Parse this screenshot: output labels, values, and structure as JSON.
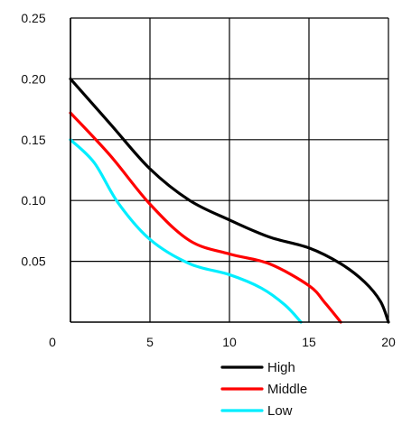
{
  "chart_data": {
    "type": "line",
    "title": "",
    "xlabel": "",
    "ylabel": "",
    "xlim": [
      0,
      20
    ],
    "ylim": [
      0,
      0.25
    ],
    "x_ticks": [
      "0",
      "5",
      "10",
      "15",
      "20"
    ],
    "y_ticks": [
      "0.25",
      "0.20",
      "0.15",
      "0.10",
      "0.05"
    ],
    "grid": true,
    "legend_position": "bottom-right",
    "series": [
      {
        "name": "High",
        "color": "#000000",
        "x": [
          0,
          2.5,
          5,
          7.5,
          10,
          12.5,
          15,
          17,
          18.5,
          19.5,
          20
        ],
        "y": [
          0.2,
          0.163,
          0.126,
          0.1,
          0.084,
          0.07,
          0.061,
          0.048,
          0.033,
          0.017,
          0
        ]
      },
      {
        "name": "Middle",
        "color": "#ff0000",
        "x": [
          0,
          2.5,
          5,
          7.5,
          10,
          12.5,
          15,
          16,
          17
        ],
        "y": [
          0.172,
          0.137,
          0.097,
          0.067,
          0.056,
          0.048,
          0.03,
          0.016,
          0
        ]
      },
      {
        "name": "Low",
        "color": "#00eeff",
        "x": [
          0,
          1.5,
          3,
          5,
          7.5,
          10,
          12,
          13.5,
          14.5
        ],
        "y": [
          0.15,
          0.131,
          0.098,
          0.068,
          0.048,
          0.039,
          0.028,
          0.014,
          0
        ]
      }
    ]
  }
}
